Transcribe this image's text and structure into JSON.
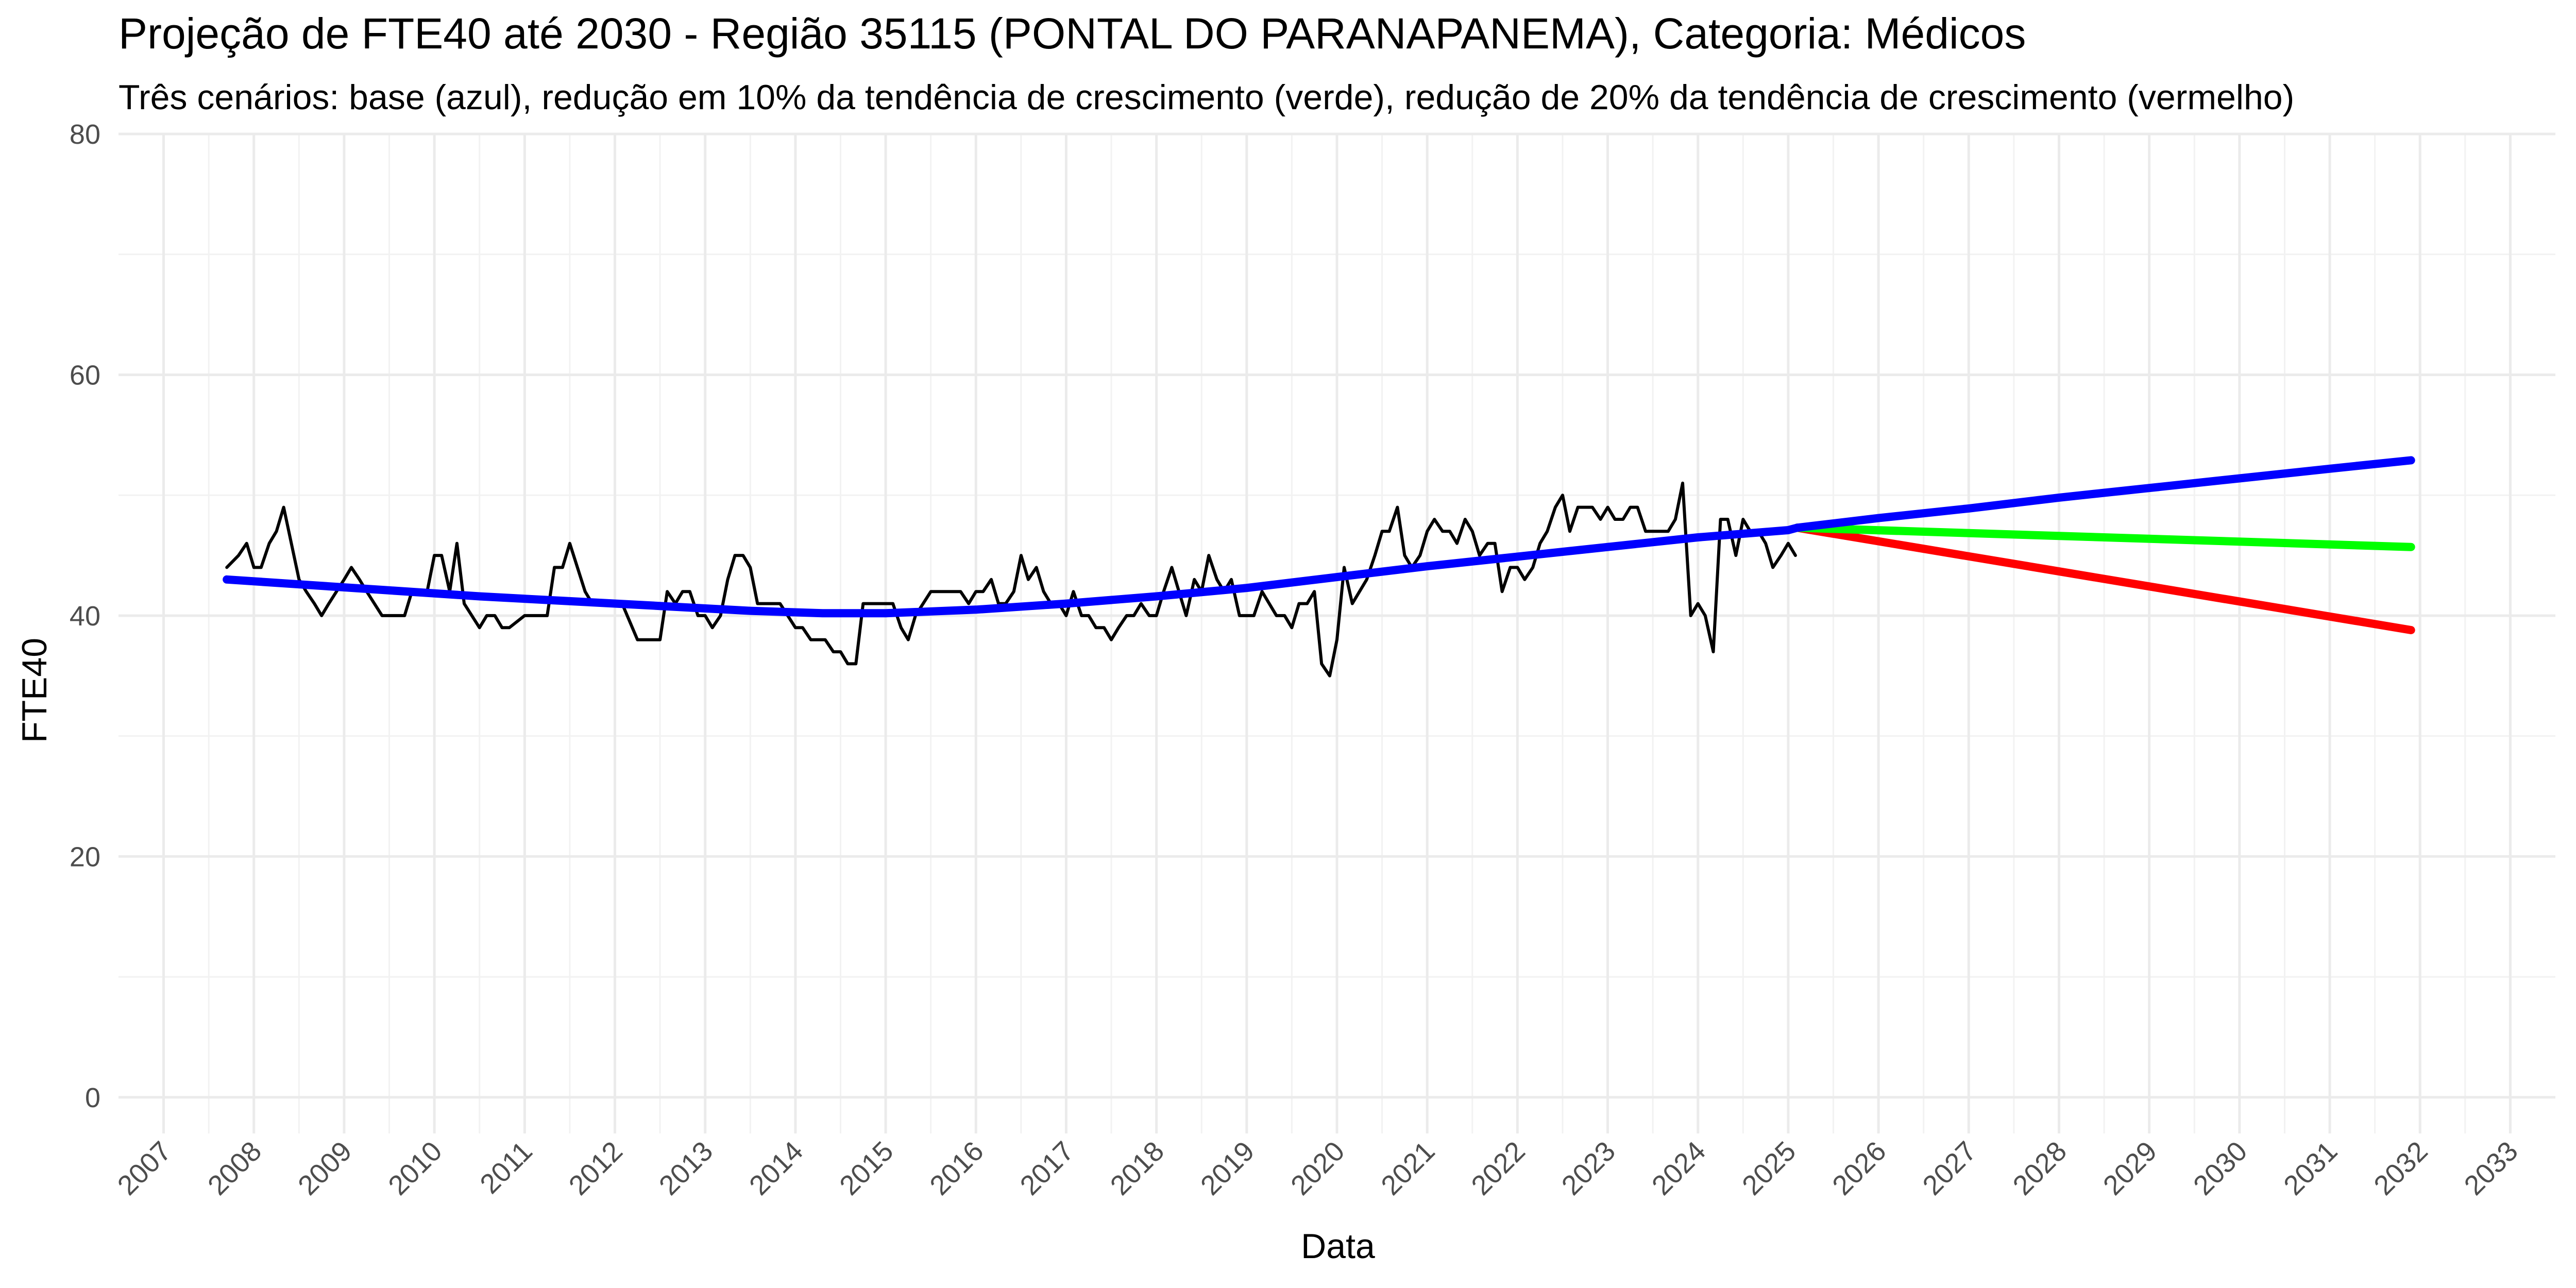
{
  "chart_data": {
    "type": "line",
    "title": "Projeção de FTE40 até 2030 - Região 35115 (PONTAL DO PARANAPANEMA), Categoria: Médicos",
    "subtitle": "Três cenários: base (azul), redução em 10% da tendência de crescimento (verde), redução de 20% da tendência de crescimento (vermelho)",
    "xlabel": "Data",
    "ylabel": "FTE40",
    "xlim": [
      2006.5,
      2033.5
    ],
    "ylim": [
      -3,
      80
    ],
    "x_ticks": [
      "2007",
      "2008",
      "2009",
      "2010",
      "2011",
      "2012",
      "2013",
      "2014",
      "2015",
      "2016",
      "2017",
      "2018",
      "2019",
      "2020",
      "2021",
      "2022",
      "2023",
      "2024",
      "2025",
      "2026",
      "2027",
      "2028",
      "2029",
      "2030",
      "2031",
      "2032",
      "2033"
    ],
    "y_ticks": [
      0,
      20,
      40,
      60,
      80
    ],
    "grid": true,
    "legend": "none",
    "series": [
      {
        "role": "observed",
        "color": "#000000",
        "x": [
          2007.7,
          2007.83,
          2007.92,
          2008.0,
          2008.08,
          2008.17,
          2008.25,
          2008.33,
          2008.5,
          2008.58,
          2008.67,
          2008.75,
          2008.83,
          2009.0,
          2009.08,
          2009.17,
          2009.25,
          2009.42,
          2009.5,
          2009.67,
          2009.75,
          2009.83,
          2009.92,
          2010.0,
          2010.08,
          2010.17,
          2010.25,
          2010.33,
          2010.5,
          2010.58,
          2010.67,
          2010.75,
          2010.83,
          2011.0,
          2011.08,
          2011.17,
          2011.25,
          2011.33,
          2011.42,
          2011.5,
          2011.67,
          2011.75,
          2011.92,
          2012.0,
          2012.08,
          2012.25,
          2012.33,
          2012.42,
          2012.5,
          2012.58,
          2012.67,
          2012.75,
          2012.83,
          2012.92,
          2013.0,
          2013.08,
          2013.17,
          2013.25,
          2013.33,
          2013.42,
          2013.5,
          2013.58,
          2013.75,
          2013.83,
          2014.0,
          2014.08,
          2014.17,
          2014.25,
          2014.33,
          2014.42,
          2014.5,
          2014.58,
          2014.67,
          2014.75,
          2014.83,
          2014.92,
          2015.0,
          2015.08,
          2015.17,
          2015.25,
          2015.33,
          2015.5,
          2015.58,
          2015.67,
          2015.83,
          2015.92,
          2016.0,
          2016.08,
          2016.17,
          2016.25,
          2016.33,
          2016.42,
          2016.5,
          2016.58,
          2016.67,
          2016.75,
          2016.83,
          2016.92,
          2017.0,
          2017.08,
          2017.17,
          2017.25,
          2017.33,
          2017.42,
          2017.5,
          2017.58,
          2017.67,
          2017.75,
          2017.83,
          2017.92,
          2018.0,
          2018.08,
          2018.17,
          2018.25,
          2018.33,
          2018.42,
          2018.5,
          2018.58,
          2018.67,
          2018.75,
          2018.83,
          2018.92,
          2019.0,
          2019.08,
          2019.17,
          2019.25,
          2019.33,
          2019.42,
          2019.5,
          2019.58,
          2019.67,
          2019.75,
          2019.83,
          2019.92,
          2020.0,
          2020.08,
          2020.17,
          2020.25,
          2020.33,
          2020.42,
          2020.5,
          2020.58,
          2020.67,
          2020.75,
          2020.83,
          2020.92,
          2021.0,
          2021.08,
          2021.17,
          2021.25,
          2021.33,
          2021.42,
          2021.5,
          2021.58,
          2021.67,
          2021.75,
          2021.83,
          2021.92,
          2022.0,
          2022.08,
          2022.17,
          2022.25,
          2022.33,
          2022.42,
          2022.5,
          2022.58,
          2022.67,
          2022.75,
          2022.83,
          2022.92,
          2023.0,
          2023.08,
          2023.17,
          2023.25,
          2023.33,
          2023.42,
          2023.5,
          2023.58,
          2023.67,
          2023.75,
          2023.83,
          2023.92,
          2024.0,
          2024.08,
          2024.17,
          2024.25,
          2024.33,
          2024.42,
          2024.5,
          2024.58,
          2024.67,
          2024.75,
          2024.83,
          2024.92,
          2025.0,
          2025.08
        ],
        "y": [
          44,
          45,
          46,
          44,
          44,
          46,
          47,
          49,
          43,
          42,
          41,
          40,
          41,
          43,
          44,
          43,
          42,
          40,
          40,
          40,
          42,
          42,
          42,
          45,
          45,
          42,
          46,
          41,
          39,
          40,
          40,
          39,
          39,
          40,
          40,
          40,
          40,
          44,
          44,
          46,
          42,
          41,
          41,
          41,
          41,
          38,
          38,
          38,
          38,
          42,
          41,
          42,
          42,
          40,
          40,
          39,
          40,
          43,
          45,
          45,
          44,
          41,
          41,
          41,
          39,
          39,
          38,
          38,
          38,
          37,
          37,
          36,
          36,
          41,
          41,
          41,
          41,
          41,
          39,
          38,
          40,
          42,
          42,
          42,
          42,
          41,
          42,
          42,
          43,
          41,
          41,
          42,
          45,
          43,
          44,
          42,
          41,
          41,
          40,
          42,
          40,
          40,
          39,
          39,
          38,
          39,
          40,
          40,
          41,
          40,
          40,
          42,
          44,
          42,
          40,
          43,
          42,
          45,
          43,
          42,
          43,
          40,
          40,
          40,
          42,
          41,
          40,
          40,
          39,
          41,
          41,
          42,
          36,
          35,
          38,
          44,
          41,
          42,
          43,
          45,
          47,
          47,
          49,
          45,
          44,
          45,
          47,
          48,
          47,
          47,
          46,
          48,
          47,
          45,
          46,
          46,
          42,
          44,
          44,
          43,
          44,
          46,
          47,
          49,
          50,
          47,
          49,
          49,
          49,
          48,
          49,
          48,
          48,
          49,
          49,
          47,
          47,
          47,
          47,
          48,
          51,
          40,
          41,
          40,
          37,
          48,
          48,
          45,
          48,
          47,
          47,
          46,
          44,
          45,
          46,
          45
        ]
      },
      {
        "role": "base",
        "color": "#0000ff",
        "x": [
          2007.7,
          2008.5,
          2009.5,
          2010.5,
          2011.5,
          2012.5,
          2013.5,
          2014.3,
          2015.0,
          2016.0,
          2017.0,
          2018.0,
          2019.0,
          2020.0,
          2021.0,
          2022.0,
          2023.0,
          2024.0,
          2025.0,
          2025.1,
          2026.0,
          2027.0,
          2028.0,
          2029.0,
          2030.0,
          2031.0,
          2031.9
        ],
        "y": [
          43,
          42.6,
          42.1,
          41.6,
          41.2,
          40.8,
          40.4,
          40.2,
          40.2,
          40.5,
          41.0,
          41.6,
          42.3,
          43.2,
          44.1,
          44.9,
          45.7,
          46.5,
          47.1,
          47.3,
          48.1,
          48.9,
          49.8,
          50.6,
          51.4,
          52.2,
          52.9
        ]
      },
      {
        "role": "reduced-10",
        "color": "#00ff00",
        "x": [
          2025.1,
          2031.9
        ],
        "y": [
          47.3,
          45.7
        ]
      },
      {
        "role": "reduced-20",
        "color": "#ff0000",
        "x": [
          2025.1,
          2031.9
        ],
        "y": [
          47.3,
          38.8
        ]
      }
    ]
  }
}
